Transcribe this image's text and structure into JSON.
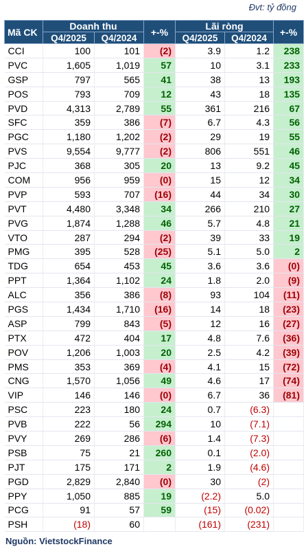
{
  "unit_note": "Đvt: tỷ đồng",
  "header": {
    "top": [
      "Mã CK",
      "Doanh thu",
      "+-%",
      "Lãi ròng",
      "+-%"
    ],
    "sub": [
      "Q4/2025",
      "Q4/2024",
      "Q4/2025",
      "Q4/2024"
    ]
  },
  "table": {
    "rows": [
      [
        "CCI",
        "100",
        "101",
        "(2)",
        "3.9",
        "1.2",
        "238"
      ],
      [
        "PVC",
        "1,605",
        "1,019",
        "57",
        "10",
        "3.1",
        "233"
      ],
      [
        "GSP",
        "797",
        "565",
        "41",
        "38",
        "13",
        "193"
      ],
      [
        "POS",
        "793",
        "709",
        "12",
        "43",
        "18",
        "135"
      ],
      [
        "PVD",
        "4,313",
        "2,789",
        "55",
        "361",
        "216",
        "67"
      ],
      [
        "SFC",
        "359",
        "386",
        "(7)",
        "6.7",
        "4.3",
        "56"
      ],
      [
        "PGC",
        "1,180",
        "1,202",
        "(2)",
        "29",
        "19",
        "55"
      ],
      [
        "PVS",
        "9,554",
        "9,777",
        "(2)",
        "806",
        "551",
        "46"
      ],
      [
        "PJC",
        "368",
        "305",
        "20",
        "13",
        "9.2",
        "45"
      ],
      [
        "COM",
        "956",
        "959",
        "(0)",
        "15",
        "12",
        "34"
      ],
      [
        "PVP",
        "593",
        "707",
        "(16)",
        "44",
        "34",
        "30"
      ],
      [
        "PVT",
        "4,480",
        "3,348",
        "34",
        "266",
        "210",
        "27"
      ],
      [
        "PVG",
        "1,874",
        "1,288",
        "46",
        "5.7",
        "4.8",
        "21"
      ],
      [
        "VTO",
        "287",
        "294",
        "(2)",
        "39",
        "33",
        "19"
      ],
      [
        "PMG",
        "395",
        "528",
        "(25)",
        "5.1",
        "5.0",
        "2"
      ],
      [
        "TDG",
        "654",
        "453",
        "45",
        "3.6",
        "3.6",
        "(0)"
      ],
      [
        "PPT",
        "1,364",
        "1,102",
        "24",
        "1.8",
        "2.0",
        "(9)"
      ],
      [
        "ALC",
        "356",
        "386",
        "(8)",
        "93",
        "104",
        "(11)"
      ],
      [
        "PGS",
        "1,434",
        "1,710",
        "(16)",
        "14",
        "18",
        "(23)"
      ],
      [
        "ASP",
        "799",
        "843",
        "(5)",
        "12",
        "16",
        "(27)"
      ],
      [
        "PTX",
        "472",
        "404",
        "17",
        "4.8",
        "7.6",
        "(36)"
      ],
      [
        "POV",
        "1,206",
        "1,003",
        "20",
        "2.5",
        "4.2",
        "(39)"
      ],
      [
        "PMS",
        "353",
        "369",
        "(4)",
        "4.1",
        "15",
        "(72)"
      ],
      [
        "CNG",
        "1,570",
        "1,056",
        "49",
        "4.6",
        "17",
        "(74)"
      ],
      [
        "VIP",
        "146",
        "146",
        "(0)",
        "6.7",
        "36",
        "(81)"
      ],
      [
        "PSC",
        "223",
        "180",
        "24",
        "0.7",
        "(6.3)",
        null
      ],
      [
        "PVB",
        "222",
        "56",
        "294",
        "10",
        "(7.1)",
        null
      ],
      [
        "PVY",
        "269",
        "286",
        "(6)",
        "1.4",
        "(7.3)",
        null
      ],
      [
        "PSB",
        "75",
        "21",
        "260",
        "0.1",
        "(2.0)",
        null
      ],
      [
        "PJT",
        "175",
        "171",
        "2",
        "1.9",
        "(4.6)",
        null
      ],
      [
        "PGD",
        "2,829",
        "2,840",
        "(0)",
        "30",
        "(2)",
        null
      ],
      [
        "PPY",
        "1,050",
        "885",
        "19",
        "(2.2)",
        "5.0",
        null
      ],
      [
        "PCG",
        "91",
        "57",
        "59",
        "(15)",
        "(0.02)",
        null
      ],
      [
        "PSH",
        "(18)",
        "60",
        null,
        "(161)",
        "(231)",
        null
      ]
    ]
  },
  "footer": {
    "source": "Nguồn: VietstockFinance"
  }
}
